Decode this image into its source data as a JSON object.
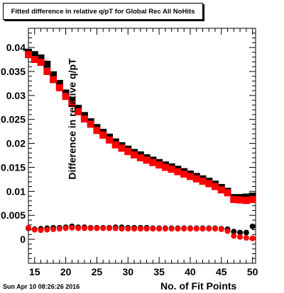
{
  "chart_data": {
    "type": "scatter",
    "title": "Fitted difference in relative q/pT for Global Rec All NoHits",
    "xlabel": "No. of Fit Points",
    "ylabel": "Difference in relative q/pT",
    "xlim": [
      14,
      50.5
    ],
    "ylim": [
      -0.005,
      0.044
    ],
    "xticks": [
      15,
      20,
      25,
      30,
      35,
      40,
      45,
      50
    ],
    "yticks": [
      0,
      0.005,
      0.01,
      0.015,
      0.02,
      0.025,
      0.03,
      0.035,
      0.04
    ],
    "ytick_labels": [
      "0",
      "0.005",
      "0.01",
      "0.015",
      "0.02",
      "0.025",
      "0.03",
      "0.035",
      "0.04"
    ],
    "grid": false,
    "series": [
      {
        "marker": "square",
        "color": "#000000",
        "x": [
          14,
          15,
          16,
          17,
          18,
          19,
          20,
          21,
          22,
          23,
          24,
          25,
          26,
          27,
          28,
          29,
          30,
          31,
          32,
          33,
          34,
          35,
          36,
          37,
          38,
          39,
          40,
          41,
          42,
          43,
          44,
          45,
          46,
          47,
          48,
          49,
          50
        ],
        "values": [
          0.039,
          0.0385,
          0.0378,
          0.0365,
          0.0343,
          0.0325,
          0.0305,
          0.029,
          0.0273,
          0.0258,
          0.0245,
          0.0233,
          0.0223,
          0.0213,
          0.0203,
          0.0195,
          0.0188,
          0.0181,
          0.0176,
          0.017,
          0.0165,
          0.016,
          0.0155,
          0.0151,
          0.0146,
          0.0141,
          0.0136,
          0.0131,
          0.0126,
          0.0121,
          0.0115,
          0.0108,
          0.01,
          0.0087,
          0.0087,
          0.0088,
          0.009
        ]
      },
      {
        "marker": "square",
        "color": "#ff0000",
        "x": [
          14,
          15,
          16,
          17,
          18,
          19,
          20,
          21,
          22,
          23,
          24,
          25,
          26,
          27,
          28,
          29,
          30,
          31,
          32,
          33,
          34,
          35,
          36,
          37,
          38,
          39,
          40,
          41,
          42,
          43,
          44,
          45,
          46,
          47,
          48,
          49,
          50
        ],
        "values": [
          0.0385,
          0.0375,
          0.0369,
          0.035,
          0.0333,
          0.0316,
          0.0298,
          0.0283,
          0.0266,
          0.0251,
          0.024,
          0.0227,
          0.0217,
          0.0207,
          0.0197,
          0.019,
          0.0183,
          0.0176,
          0.017,
          0.0165,
          0.016,
          0.0155,
          0.015,
          0.0146,
          0.0141,
          0.0136,
          0.0131,
          0.0126,
          0.0121,
          0.0116,
          0.011,
          0.0103,
          0.0097,
          0.0083,
          0.0082,
          0.0081,
          0.0083
        ]
      },
      {
        "marker": "circle",
        "color": "#000000",
        "x": [
          14,
          15,
          16,
          17,
          18,
          19,
          20,
          21,
          22,
          23,
          24,
          25,
          26,
          27,
          28,
          29,
          30,
          31,
          32,
          33,
          34,
          35,
          36,
          37,
          38,
          39,
          40,
          41,
          42,
          43,
          44,
          45,
          46,
          47,
          48,
          49,
          50
        ],
        "values": [
          0.0023,
          0.0021,
          0.0022,
          0.0023,
          0.0024,
          0.0024,
          0.0025,
          0.0027,
          0.0025,
          0.0025,
          0.0024,
          0.0024,
          0.0024,
          0.0024,
          0.0025,
          0.0025,
          0.0024,
          0.0024,
          0.0024,
          0.0024,
          0.0023,
          0.0023,
          0.0023,
          0.0023,
          0.0023,
          0.0023,
          0.0023,
          0.0023,
          0.0023,
          0.0023,
          0.0023,
          0.0022,
          0.0021,
          0.0016,
          0.0014,
          0.0014,
          0.0027
        ]
      },
      {
        "marker": "circle",
        "color": "#ff0000",
        "x": [
          14,
          15,
          16,
          17,
          18,
          19,
          20,
          21,
          22,
          23,
          24,
          25,
          26,
          27,
          28,
          29,
          30,
          31,
          32,
          33,
          34,
          35,
          36,
          37,
          38,
          39,
          40,
          41,
          42,
          43,
          44,
          45,
          46,
          47,
          48,
          49,
          50
        ],
        "values": [
          0.0024,
          0.002,
          0.0019,
          0.002,
          0.0021,
          0.0022,
          0.0023,
          0.0024,
          0.0023,
          0.0023,
          0.0023,
          0.0023,
          0.0023,
          0.0023,
          0.0023,
          0.0022,
          0.0022,
          0.0022,
          0.0022,
          0.0022,
          0.0022,
          0.0022,
          0.0022,
          0.0022,
          0.0022,
          0.0022,
          0.0022,
          0.0022,
          0.0022,
          0.0022,
          0.0022,
          0.0021,
          0.0017,
          0.0007,
          0.0005,
          0.0003,
          0.0002
        ]
      }
    ]
  },
  "footer": {
    "timestamp": "Sun Apr 10 08:26:26 2016"
  }
}
